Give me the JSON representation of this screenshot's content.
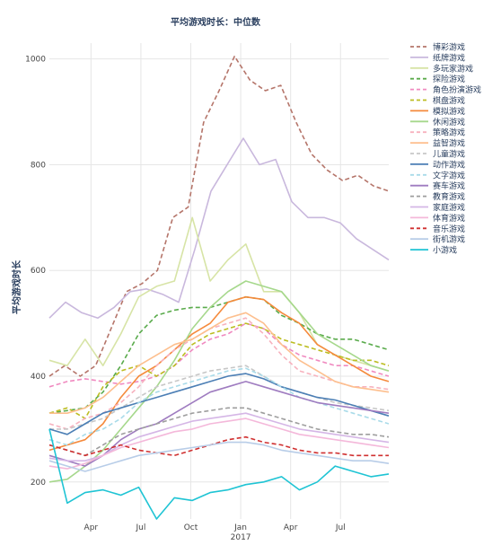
{
  "chart_data": {
    "type": "line",
    "title": "平均游戏时长：中位数",
    "xlabel": "",
    "ylabel": "平均游戏时长",
    "x_tick_labels": [
      "Apr",
      "Jul",
      "Oct",
      "Jan\n2017",
      "Apr",
      "Jul"
    ],
    "x_tick_positions": [
      2.0,
      5.0,
      8.0,
      11.0,
      14.0,
      17.0
    ],
    "xlim": [
      -0.5,
      19.9
    ],
    "ylim": [
      130,
      1030
    ],
    "y_ticks": [
      200,
      400,
      600,
      800,
      1000
    ],
    "grid": true,
    "legend_position": "right",
    "series": [
      {
        "name": "博彩游戏",
        "color": "#b5756a",
        "dash": "dash",
        "values": [
          400,
          420,
          400,
          420,
          490,
          560,
          575,
          600,
          700,
          720,
          880,
          940,
          1005,
          960,
          940,
          950,
          880,
          820,
          790,
          770,
          780,
          760,
          750
        ]
      },
      {
        "name": "纸牌游戏",
        "color": "#c9b8dd",
        "dash": "solid",
        "values": [
          510,
          540,
          520,
          510,
          530,
          560,
          565,
          555,
          540,
          640,
          750,
          800,
          850,
          800,
          810,
          730,
          700,
          700,
          690,
          660,
          640,
          620
        ]
      },
      {
        "name": "多玩家游戏",
        "color": "#d7e4a6",
        "dash": "solid",
        "values": [
          430,
          420,
          470,
          420,
          480,
          550,
          570,
          580,
          700,
          580,
          620,
          650,
          560,
          560,
          520,
          460,
          440,
          430,
          420,
          410
        ]
      },
      {
        "name": "探险游戏",
        "color": "#5aab4c",
        "dash": "dash",
        "values": [
          330,
          335,
          340,
          370,
          420,
          480,
          515,
          525,
          530,
          530,
          540,
          550,
          545,
          515,
          500,
          480,
          470,
          470,
          460,
          450
        ]
      },
      {
        "name": "角色扮演游戏",
        "color": "#f08ac0",
        "dash": "dash",
        "values": [
          380,
          390,
          395,
          390,
          385,
          390,
          400,
          420,
          450,
          470,
          480,
          500,
          490,
          460,
          440,
          430,
          420,
          420,
          410,
          400
        ]
      },
      {
        "name": "棋盘游戏",
        "color": "#bcbd22",
        "dash": "dash",
        "values": [
          330,
          340,
          320,
          380,
          410,
          420,
          400,
          420,
          460,
          480,
          490,
          500,
          490,
          470,
          460,
          450,
          440,
          430,
          430,
          420
        ]
      },
      {
        "name": "模拟游戏",
        "color": "#f58a3c",
        "dash": "solid",
        "values": [
          260,
          270,
          280,
          310,
          360,
          400,
          420,
          450,
          480,
          500,
          540,
          550,
          545,
          520,
          500,
          460,
          440,
          420,
          400,
          390
        ]
      },
      {
        "name": "休闲游戏",
        "color": "#a6d88c",
        "dash": "solid",
        "values": [
          200,
          205,
          230,
          260,
          300,
          340,
          380,
          430,
          490,
          530,
          560,
          580,
          570,
          560,
          520,
          480,
          460,
          440,
          420,
          410
        ]
      },
      {
        "name": "策略游戏",
        "color": "#f7b2be",
        "dash": "dash",
        "values": [
          310,
          300,
          320,
          330,
          350,
          380,
          420,
          450,
          470,
          490,
          500,
          510,
          480,
          440,
          410,
          400,
          390,
          380,
          380,
          375
        ]
      },
      {
        "name": "益智游戏",
        "color": "#fdbf8e",
        "dash": "solid",
        "values": [
          330,
          330,
          340,
          360,
          390,
          420,
          440,
          460,
          470,
          490,
          510,
          520,
          500,
          460,
          430,
          410,
          390,
          380,
          375,
          370
        ]
      },
      {
        "name": "儿童游戏",
        "color": "#c7c7c7",
        "dash": "dash",
        "values": [
          300,
          300,
          310,
          320,
          340,
          360,
          380,
          390,
          400,
          410,
          415,
          420,
          400,
          380,
          370,
          360,
          350,
          345,
          340,
          335
        ]
      },
      {
        "name": "动作游戏",
        "color": "#4c7fb5",
        "dash": "solid",
        "values": [
          300,
          290,
          310,
          330,
          340,
          350,
          360,
          370,
          380,
          390,
          400,
          405,
          395,
          380,
          370,
          360,
          355,
          345,
          335,
          325
        ]
      },
      {
        "name": "文字游戏",
        "color": "#a9dbe9",
        "dash": "dash",
        "values": [
          280,
          270,
          290,
          300,
          320,
          350,
          370,
          380,
          390,
          400,
          410,
          415,
          400,
          380,
          360,
          350,
          340,
          330,
          320,
          310
        ]
      },
      {
        "name": "赛车游戏",
        "color": "#9f7cc0",
        "dash": "solid",
        "values": [
          250,
          240,
          230,
          250,
          280,
          300,
          310,
          330,
          350,
          370,
          380,
          390,
          380,
          370,
          360,
          350,
          345,
          340,
          335,
          330
        ]
      },
      {
        "name": "教育游戏",
        "color": "#9e9e9e",
        "dash": "dash",
        "values": [
          270,
          260,
          250,
          270,
          290,
          300,
          310,
          320,
          330,
          335,
          340,
          340,
          330,
          320,
          310,
          300,
          295,
          290,
          290,
          285
        ]
      },
      {
        "name": "家庭游戏",
        "color": "#d5b6e6",
        "dash": "solid",
        "values": [
          245,
          240,
          240,
          250,
          270,
          285,
          295,
          305,
          315,
          320,
          325,
          330,
          320,
          310,
          300,
          295,
          290,
          285,
          280,
          275
        ]
      },
      {
        "name": "体育游戏",
        "color": "#f4b8da",
        "dash": "solid",
        "values": [
          230,
          225,
          235,
          250,
          265,
          275,
          285,
          295,
          300,
          310,
          315,
          320,
          310,
          300,
          290,
          285,
          280,
          275,
          270,
          265
        ]
      },
      {
        "name": "音乐游戏",
        "color": "#d03030",
        "dash": "dash",
        "values": [
          270,
          260,
          250,
          260,
          270,
          260,
          255,
          250,
          260,
          270,
          280,
          285,
          275,
          270,
          260,
          255,
          255,
          250,
          250,
          250
        ]
      },
      {
        "name": "街机游戏",
        "color": "#b8cde8",
        "dash": "solid",
        "values": [
          240,
          230,
          220,
          230,
          240,
          250,
          255,
          260,
          265,
          270,
          275,
          275,
          270,
          260,
          255,
          250,
          245,
          240,
          240,
          235
        ]
      },
      {
        "name": "小游戏",
        "color": "#1fc4d4",
        "dash": "solid",
        "values": [
          300,
          160,
          180,
          185,
          175,
          190,
          130,
          170,
          165,
          180,
          185,
          195,
          200,
          210,
          185,
          200,
          230,
          220,
          210,
          215
        ]
      }
    ]
  }
}
